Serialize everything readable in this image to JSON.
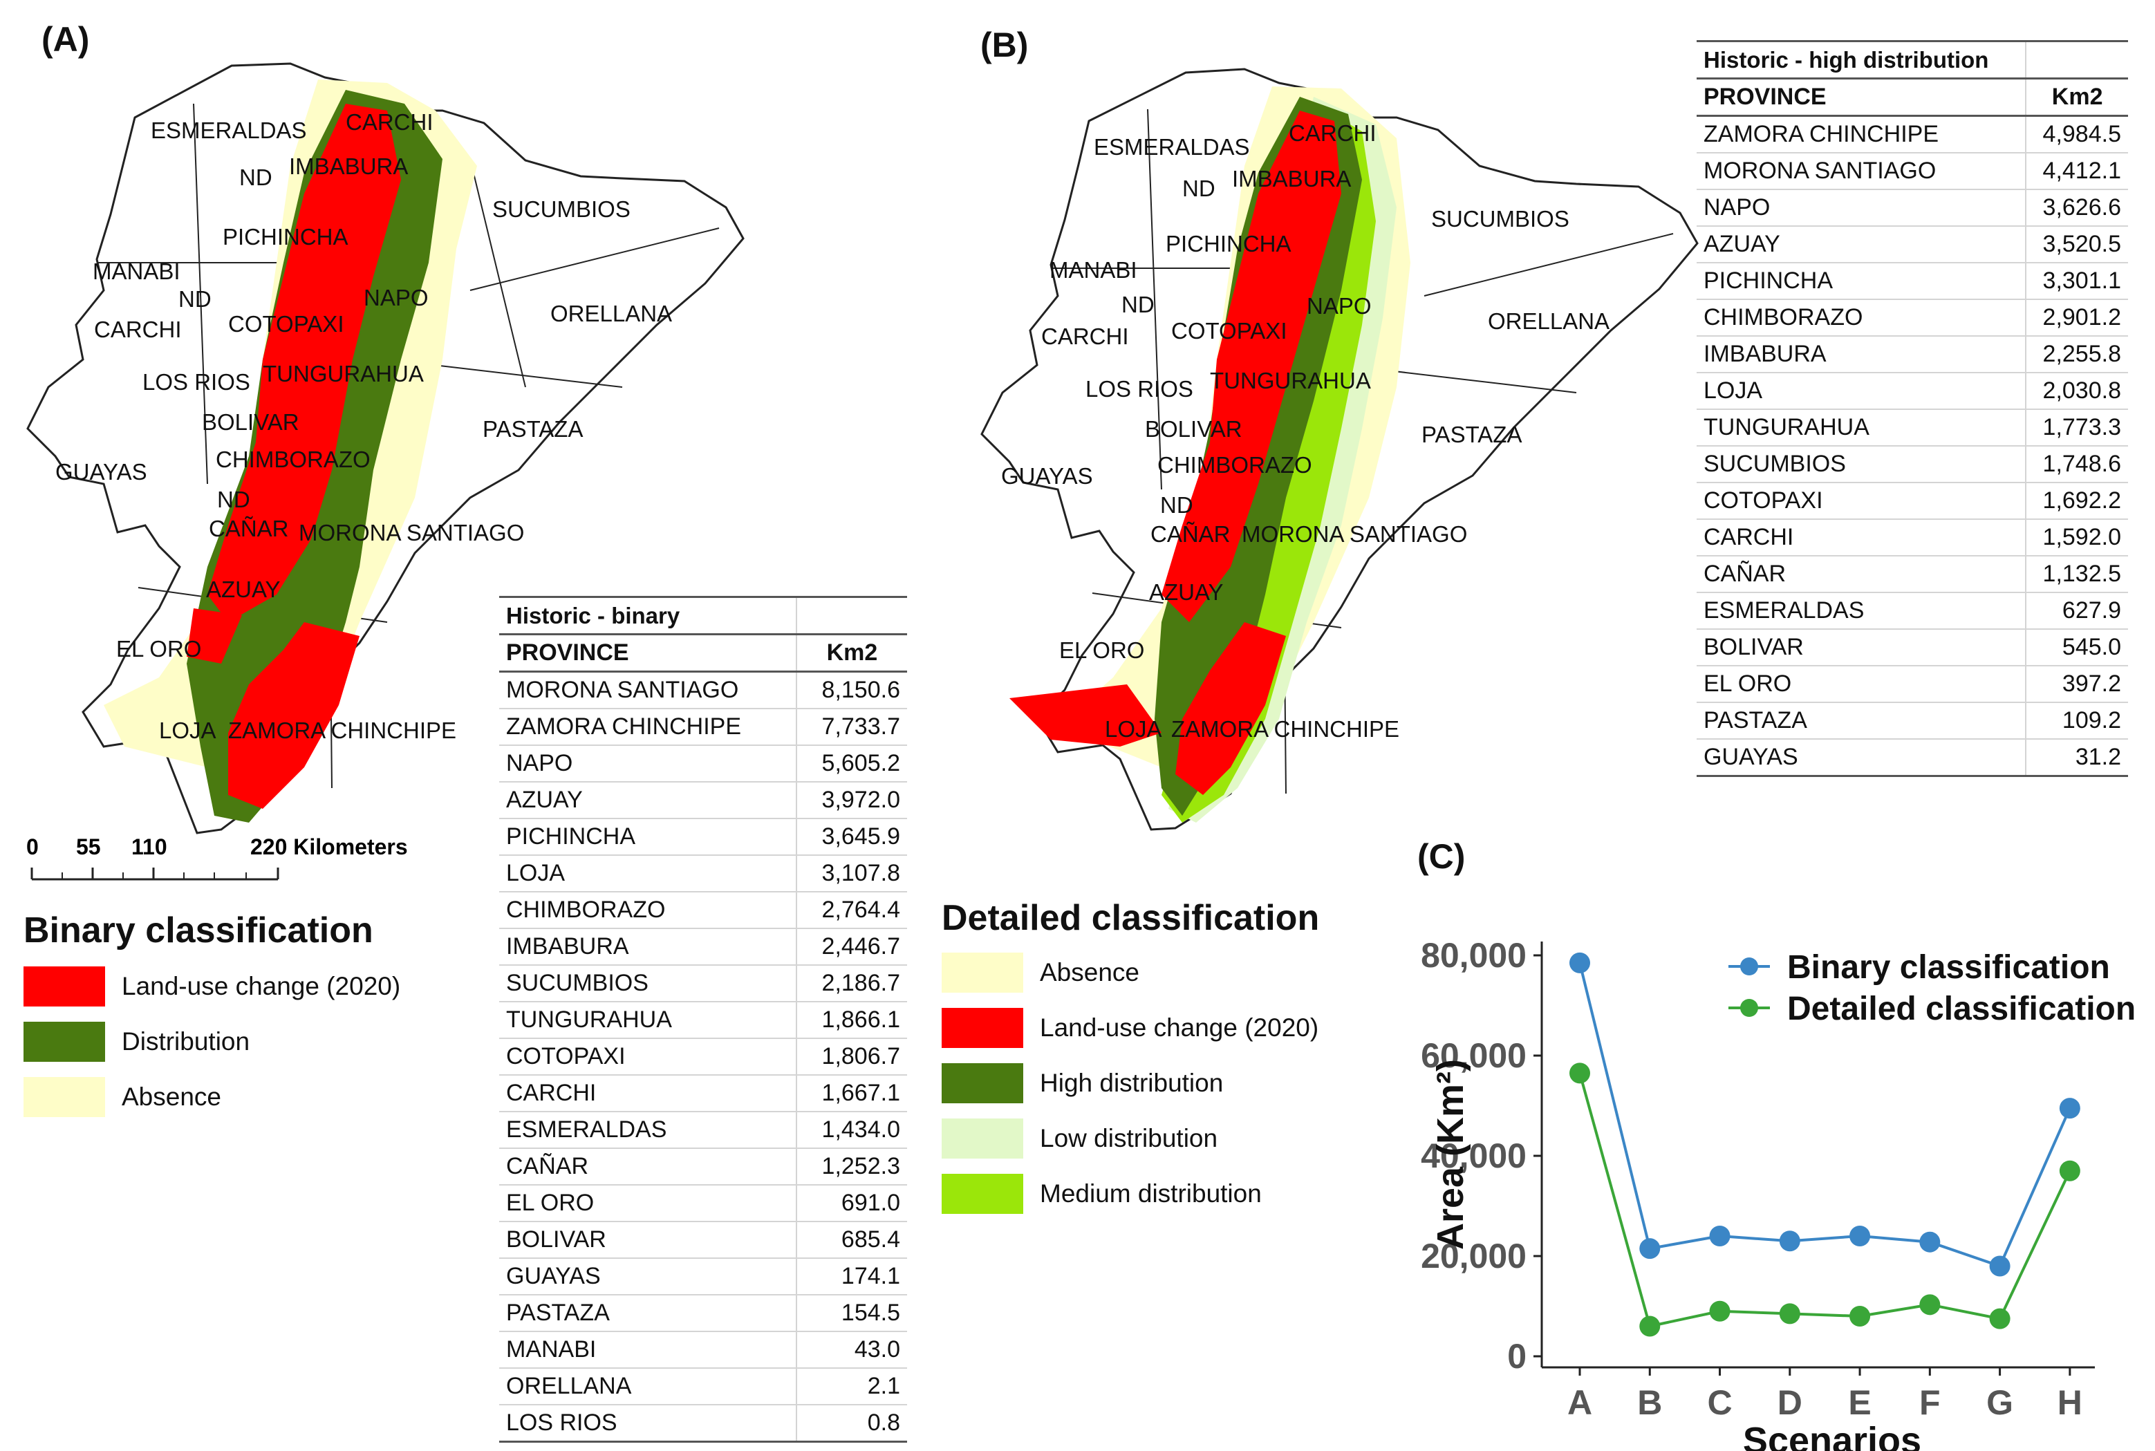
{
  "panels": {
    "a": "(A)",
    "b": "(B)",
    "c": "(C)"
  },
  "colors": {
    "land_use": "#ff0000",
    "distribution": "#4a7a10",
    "absence": "#fefdc8",
    "low": "#e2f8c8",
    "medium": "#9be60a",
    "binary_series": "#3b86c6",
    "detailed_series": "#3aa638"
  },
  "map_a_labels": [
    "ESMERALDAS",
    "CARCHI",
    "ND",
    "IMBABURA",
    "SUCUMBIOS",
    "PICHINCHA",
    "MANABI",
    "ND",
    "NAPO",
    "ORELLANA",
    "CARCHI",
    "COTOPAXI",
    "LOS RIOS",
    "TUNGURAHUA",
    "BOLIVAR",
    "PASTAZA",
    "GUAYAS",
    "CHIMBORAZO",
    "ND",
    "CAÑAR",
    "MORONA SANTIAGO",
    "AZUAY",
    "EL ORO",
    "LOJA",
    "ZAMORA CHINCHIPE"
  ],
  "map_b_labels": [
    "ESMERALDAS",
    "CARCHI",
    "ND",
    "IMBABURA",
    "SUCUMBIOS",
    "PICHINCHA",
    "MANABI",
    "ND",
    "NAPO",
    "ORELLANA",
    "CARCHI",
    "COTOPAXI",
    "LOS RIOS",
    "TUNGURAHUA",
    "BOLIVAR",
    "PASTAZA",
    "GUAYAS",
    "CHIMBORAZO",
    "ND",
    "CAÑAR",
    "MORONA SANTIAGO",
    "AZUAY",
    "EL ORO",
    "LOJA",
    "ZAMORA CHINCHIPE"
  ],
  "scalebar": {
    "ticks": [
      "0",
      "55",
      "110",
      "220 Kilometers"
    ]
  },
  "legend_binary": {
    "title": "Binary classification",
    "items": [
      "Land-use change (2020)",
      "Distribution",
      "Absence"
    ]
  },
  "legend_detailed": {
    "title": "Detailed classification",
    "items": [
      "Absence",
      "Land-use change (2020)",
      "High distribution",
      "Low distribution",
      "Medium distribution"
    ]
  },
  "table_binary": {
    "caption": "Historic - binary",
    "headers": [
      "PROVINCE",
      "Km2"
    ],
    "rows": [
      [
        "MORONA SANTIAGO",
        "8,150.6"
      ],
      [
        "ZAMORA CHINCHIPE",
        "7,733.7"
      ],
      [
        "NAPO",
        "5,605.2"
      ],
      [
        "AZUAY",
        "3,972.0"
      ],
      [
        "PICHINCHA",
        "3,645.9"
      ],
      [
        "LOJA",
        "3,107.8"
      ],
      [
        "CHIMBORAZO",
        "2,764.4"
      ],
      [
        "IMBABURA",
        "2,446.7"
      ],
      [
        "SUCUMBIOS",
        "2,186.7"
      ],
      [
        "TUNGURAHUA",
        "1,866.1"
      ],
      [
        "COTOPAXI",
        "1,806.7"
      ],
      [
        "CARCHI",
        "1,667.1"
      ],
      [
        "ESMERALDAS",
        "1,434.0"
      ],
      [
        "CAÑAR",
        "1,252.3"
      ],
      [
        "EL ORO",
        "691.0"
      ],
      [
        "BOLIVAR",
        "685.4"
      ],
      [
        "GUAYAS",
        "174.1"
      ],
      [
        "PASTAZA",
        "154.5"
      ],
      [
        "MANABI",
        "43.0"
      ],
      [
        "ORELLANA",
        "2.1"
      ],
      [
        "LOS RIOS",
        "0.8"
      ]
    ]
  },
  "table_high": {
    "caption": "Historic - high distribution",
    "headers": [
      "PROVINCE",
      "Km2"
    ],
    "rows": [
      [
        "ZAMORA CHINCHIPE",
        "4,984.5"
      ],
      [
        "MORONA SANTIAGO",
        "4,412.1"
      ],
      [
        "NAPO",
        "3,626.6"
      ],
      [
        "AZUAY",
        "3,520.5"
      ],
      [
        "PICHINCHA",
        "3,301.1"
      ],
      [
        "CHIMBORAZO",
        "2,901.2"
      ],
      [
        "IMBABURA",
        "2,255.8"
      ],
      [
        "LOJA",
        "2,030.8"
      ],
      [
        "TUNGURAHUA",
        "1,773.3"
      ],
      [
        "SUCUMBIOS",
        "1,748.6"
      ],
      [
        "COTOPAXI",
        "1,692.2"
      ],
      [
        "CARCHI",
        "1,592.0"
      ],
      [
        "CAÑAR",
        "1,132.5"
      ],
      [
        "ESMERALDAS",
        "627.9"
      ],
      [
        "BOLIVAR",
        "545.0"
      ],
      [
        "EL ORO",
        "397.2"
      ],
      [
        "PASTAZA",
        "109.2"
      ],
      [
        "GUAYAS",
        "31.2"
      ]
    ]
  },
  "chart_data": {
    "type": "line",
    "title": "",
    "xlabel": "Scenarios",
    "ylabel": "Area (Km²)",
    "categories": [
      "A",
      "B",
      "C",
      "D",
      "E",
      "F",
      "G",
      "H"
    ],
    "ylim": [
      0,
      80000
    ],
    "yticks": [
      0,
      20000,
      40000,
      60000,
      80000
    ],
    "ytick_labels": [
      "0",
      "20,000",
      "40,000",
      "60,000",
      "80,000"
    ],
    "legend_position": "top-right",
    "series": [
      {
        "name": "Binary classification",
        "values": [
          78500,
          21500,
          24000,
          23000,
          24000,
          22800,
          18000,
          49500
        ]
      },
      {
        "name": "Detailed classification",
        "values": [
          56500,
          6000,
          9000,
          8500,
          8000,
          10300,
          7500,
          37000
        ]
      }
    ]
  }
}
